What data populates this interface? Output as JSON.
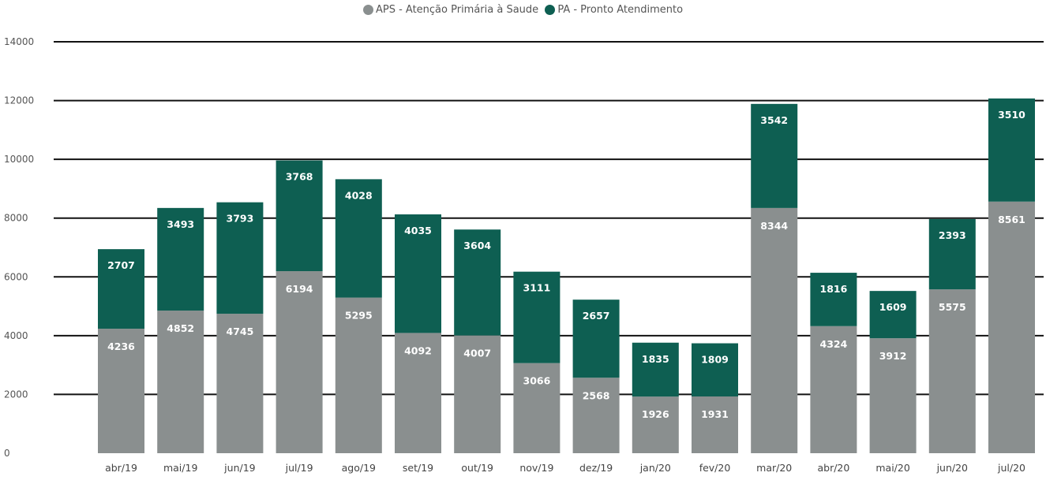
{
  "chart_data": {
    "type": "bar",
    "stacked": true,
    "title": "",
    "xlabel": "",
    "ylabel": "",
    "ylim": [
      0,
      14000
    ],
    "yticks": [
      "0",
      "2000",
      "4000",
      "6000",
      "8000",
      "10000",
      "12000",
      "14000"
    ],
    "grid": true,
    "legend_position": "top-center",
    "categories": [
      "abr/19",
      "mai/19",
      "jun/19",
      "jul/19",
      "ago/19",
      "set/19",
      "out/19",
      "nov/19",
      "dez/19",
      "jan/20",
      "fev/20",
      "mar/20",
      "abr/20",
      "mai/20",
      "jun/20",
      "jul/20"
    ],
    "series": [
      {
        "name": "APS - Atenção Primária à Saude",
        "color": "#8a8f8f",
        "values": [
          4236,
          4852,
          4745,
          6194,
          5295,
          4092,
          4007,
          3066,
          2568,
          1926,
          1931,
          8344,
          4324,
          3912,
          5575,
          8561
        ]
      },
      {
        "name": "PA - Pronto Atendimento",
        "color": "#0e5f52",
        "values": [
          2707,
          3493,
          3793,
          3768,
          4028,
          4035,
          3604,
          3111,
          2657,
          1835,
          1809,
          3542,
          1816,
          1609,
          2393,
          3510
        ]
      }
    ]
  }
}
